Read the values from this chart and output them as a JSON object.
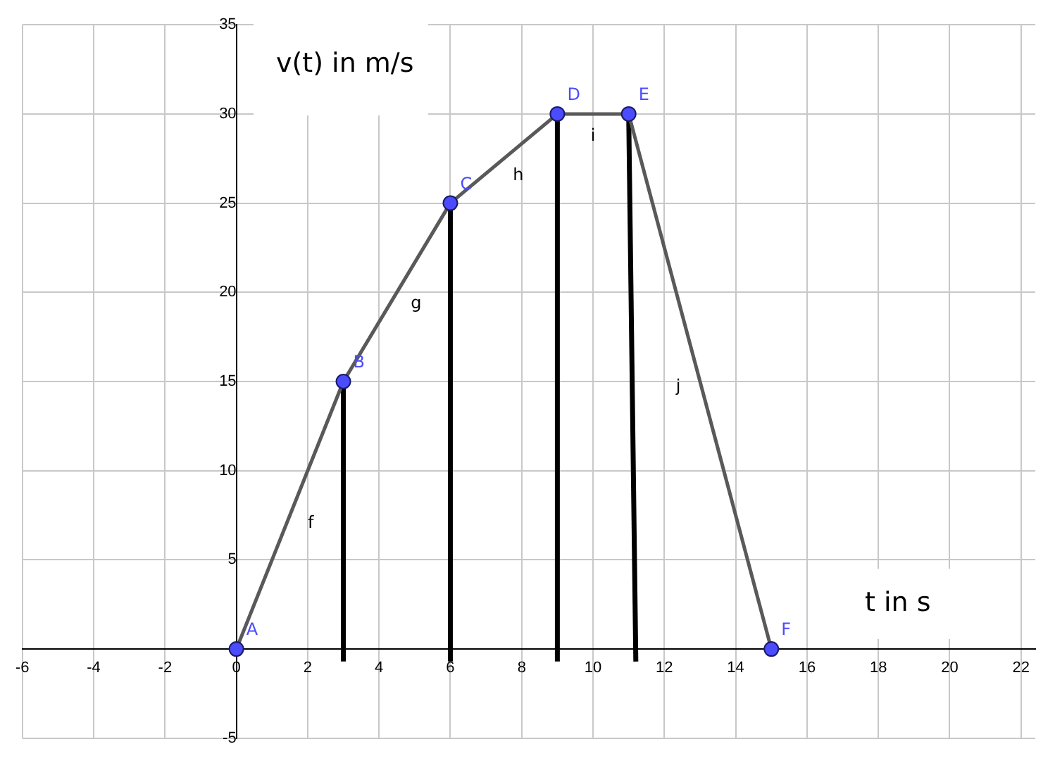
{
  "chart_data": {
    "type": "line",
    "xlabel": "t in s",
    "ylabel": "v(t) in m/s",
    "xlim": [
      -6,
      22.4
    ],
    "ylim": [
      -5,
      35
    ],
    "xticks": [
      -6,
      -4,
      -2,
      0,
      2,
      4,
      6,
      8,
      10,
      12,
      14,
      16,
      18,
      20,
      22
    ],
    "yticks": [
      -5,
      5,
      10,
      15,
      20,
      25,
      30,
      35
    ],
    "grid": true,
    "legend": false,
    "series": [
      {
        "type": "line",
        "color": "#595959",
        "x": [
          0,
          3,
          6,
          9,
          11,
          15
        ],
        "values": [
          0,
          15,
          25,
          30,
          30,
          0
        ]
      },
      {
        "type": "line",
        "color": "#000000",
        "x": [
          3,
          3
        ],
        "values": [
          -0.7,
          15
        ]
      },
      {
        "type": "line",
        "color": "#000000",
        "x": [
          6,
          6
        ],
        "values": [
          -0.7,
          25
        ]
      },
      {
        "type": "line",
        "color": "#000000",
        "x": [
          9,
          9
        ],
        "values": [
          -0.7,
          30
        ]
      },
      {
        "type": "line",
        "color": "#000000",
        "x": [
          11.2,
          11
        ],
        "values": [
          -0.7,
          30
        ]
      },
      {
        "type": "scatter",
        "color": "#4c4cff",
        "x": [
          0,
          3,
          6,
          9,
          11,
          15
        ],
        "values": [
          0,
          15,
          25,
          30,
          30,
          0
        ]
      }
    ],
    "annotations": [
      {
        "text": "A",
        "x": 0,
        "y": 0
      },
      {
        "text": "B",
        "x": 3,
        "y": 15
      },
      {
        "text": "C",
        "x": 6,
        "y": 25
      },
      {
        "text": "D",
        "x": 9,
        "y": 30
      },
      {
        "text": "E",
        "x": 11,
        "y": 30
      },
      {
        "text": "F",
        "x": 15,
        "y": 0
      },
      "f",
      "g",
      "h",
      "i",
      "j"
    ]
  }
}
